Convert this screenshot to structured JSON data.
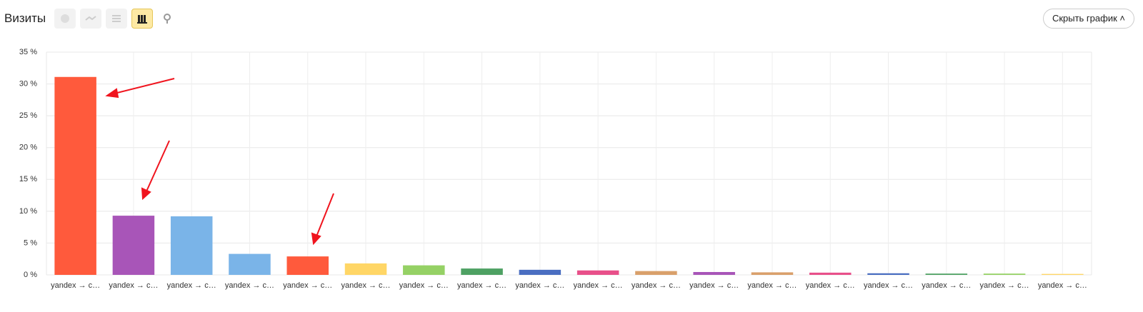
{
  "header": {
    "title": "Визиты",
    "hide_button": "Скрыть график"
  },
  "chart_data": {
    "type": "bar",
    "categories": [
      "yandex → c…",
      "yandex → c…",
      "yandex → c…",
      "yandex → c…",
      "yandex → c…",
      "yandex → c…",
      "yandex → c…",
      "yandex → c…",
      "yandex → c…",
      "yandex → c…",
      "yandex → c…",
      "yandex → c…",
      "yandex → c…",
      "yandex → c…",
      "yandex → c…",
      "yandex → c…",
      "yandex → c…",
      "yandex → c…"
    ],
    "values": [
      31.1,
      9.3,
      9.2,
      3.3,
      2.9,
      1.8,
      1.5,
      1.0,
      0.8,
      0.7,
      0.6,
      0.45,
      0.4,
      0.35,
      0.25,
      0.2,
      0.2,
      0.15
    ],
    "colors": [
      "#ff5a3c",
      "#a855b8",
      "#7ab4e8",
      "#7ab4e8",
      "#ff5a3c",
      "#ffd666",
      "#95d165",
      "#4ea163",
      "#4a6ec1",
      "#e8508a",
      "#d9a06b",
      "#a855b8",
      "#d9a06b",
      "#e8508a",
      "#4a6ec1",
      "#4ea163",
      "#95d165",
      "#ffd666"
    ],
    "ylim": [
      0,
      35
    ],
    "yticks": [
      {
        "value": 0,
        "label": "0 %"
      },
      {
        "value": 5,
        "label": "5 %"
      },
      {
        "value": 10,
        "label": "10 %"
      },
      {
        "value": 15,
        "label": "15 %"
      },
      {
        "value": 20,
        "label": "20 %"
      },
      {
        "value": 25,
        "label": "25 %"
      },
      {
        "value": 30,
        "label": "30 %"
      },
      {
        "value": 35,
        "label": "35 %"
      }
    ],
    "grid": true
  }
}
